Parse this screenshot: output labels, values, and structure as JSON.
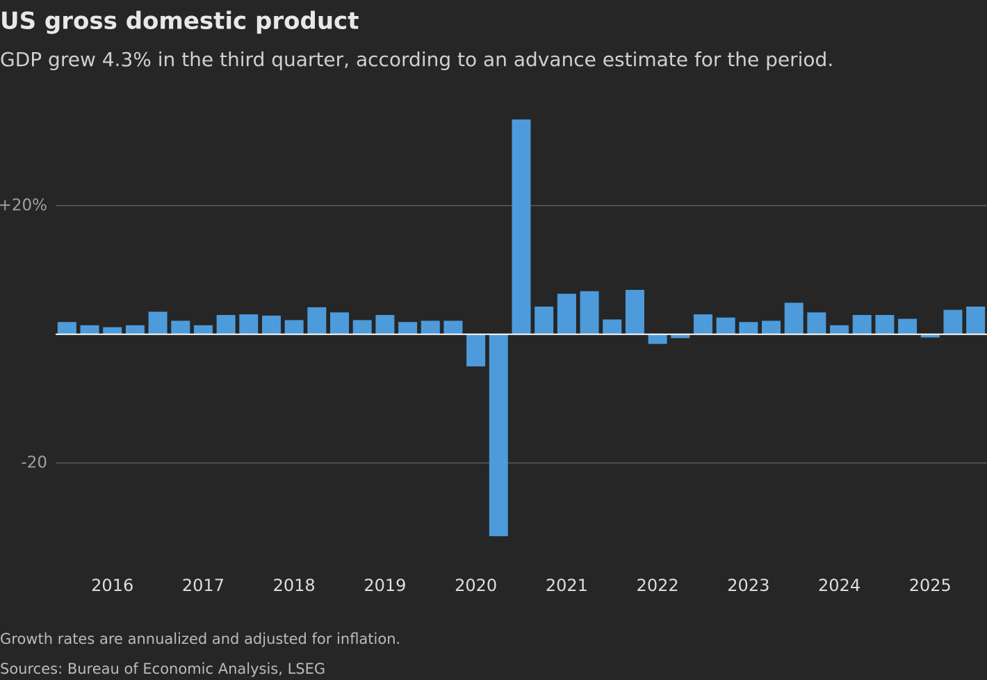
{
  "chart_data": {
    "type": "bar",
    "title": "US gross domestic product",
    "subtitle": "GDP grew 4.3% in the third quarter, according to an advance estimate for the period.",
    "footnote": "Growth rates are annualized and adjusted for inflation.",
    "source": "Sources: Bureau of Economic Analysis, LSEG",
    "categories": [
      null,
      null,
      "2016",
      null,
      null,
      null,
      "2017",
      null,
      null,
      null,
      "2018",
      null,
      null,
      null,
      "2019",
      null,
      null,
      null,
      "2020",
      null,
      null,
      null,
      "2021",
      null,
      null,
      null,
      "2022",
      null,
      null,
      null,
      "2023",
      null,
      null,
      null,
      "2024",
      null,
      null,
      null,
      "2025",
      null,
      null
    ],
    "values": [
      1.9,
      1.4,
      1.1,
      1.4,
      3.5,
      2.1,
      1.4,
      3.0,
      3.1,
      2.9,
      2.2,
      4.2,
      3.4,
      2.2,
      3.0,
      1.9,
      2.1,
      2.1,
      -5.0,
      -31.4,
      33.4,
      4.3,
      6.3,
      6.7,
      2.3,
      6.9,
      -1.5,
      -0.6,
      3.1,
      2.6,
      1.9,
      2.1,
      4.9,
      3.4,
      1.4,
      3.0,
      3.0,
      2.4,
      -0.5,
      3.8,
      4.3
    ],
    "color": "#4d9bdb",
    "ylim": [
      -33,
      35
    ],
    "yticks": [
      -20,
      {
        "value": 20,
        "label": "+20%"
      }
    ],
    "grid": true
  }
}
